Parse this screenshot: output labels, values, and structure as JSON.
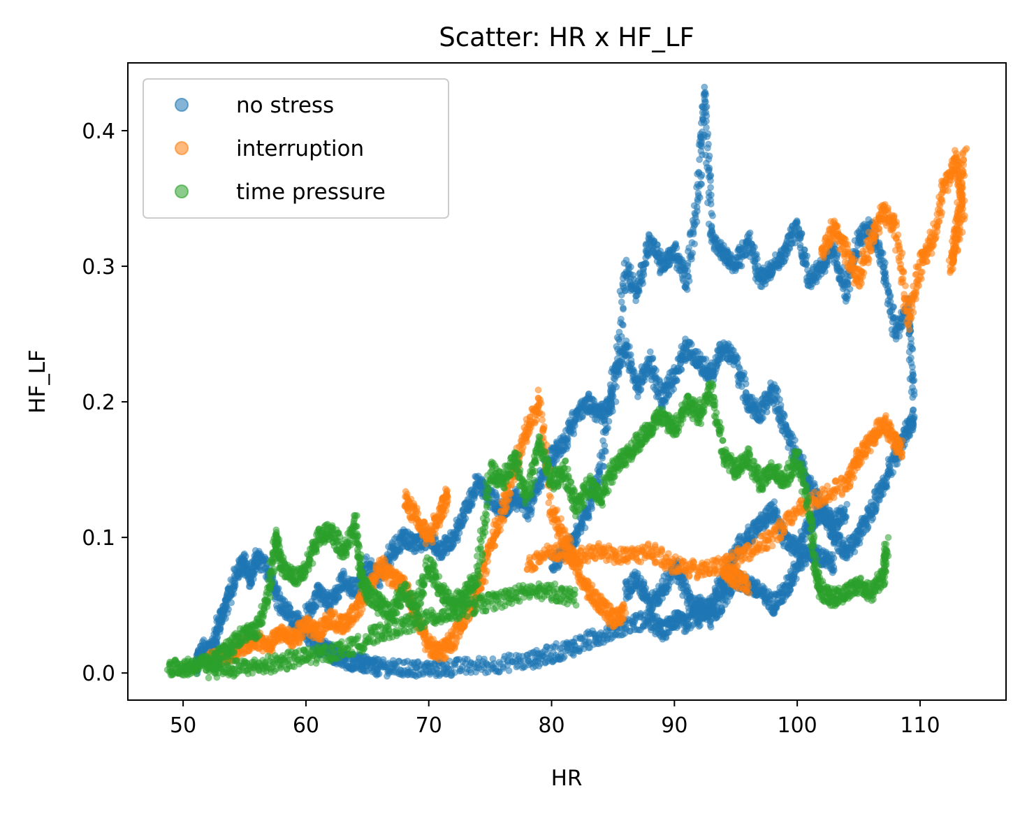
{
  "chart_data": {
    "type": "scatter",
    "title": "Scatter: HR x HF_LF",
    "xlabel": "HR",
    "ylabel": "HF_LF",
    "xlim": [
      45.5,
      117
    ],
    "ylim": [
      -0.02,
      0.45
    ],
    "xticks": [
      50,
      60,
      70,
      80,
      90,
      100,
      110
    ],
    "yticks": [
      0.0,
      0.1,
      0.2,
      0.3,
      0.4
    ],
    "ytick_labels": [
      "0.0",
      "0.1",
      "0.2",
      "0.3",
      "0.4"
    ],
    "grid": false,
    "legend_position": "top-left",
    "series": [
      {
        "name": "no stress",
        "color": "#1f77b4",
        "path": [
          [
            51,
            0.003
          ],
          [
            51.5,
            0.018
          ],
          [
            52.5,
            0.02
          ],
          [
            53,
            0.04
          ],
          [
            53.5,
            0.05
          ],
          [
            54.3,
            0.072
          ],
          [
            55,
            0.082
          ],
          [
            55.5,
            0.068
          ],
          [
            56,
            0.085
          ],
          [
            57,
            0.075
          ],
          [
            58,
            0.05
          ],
          [
            59,
            0.04
          ],
          [
            60,
            0.03
          ],
          [
            61,
            0.02
          ],
          [
            62,
            0.015
          ],
          [
            63,
            0.01
          ],
          [
            64,
            0.008
          ],
          [
            65,
            0.006
          ],
          [
            66,
            0.004
          ],
          [
            68,
            0.003
          ],
          [
            70,
            0.003
          ],
          [
            72,
            0.004
          ],
          [
            75,
            0.006
          ],
          [
            78,
            0.009
          ],
          [
            80,
            0.014
          ],
          [
            82,
            0.02
          ],
          [
            84,
            0.028
          ],
          [
            86,
            0.035
          ],
          [
            88,
            0.04
          ],
          [
            89,
            0.03
          ],
          [
            90,
            0.04
          ],
          [
            91,
            0.035
          ],
          [
            92,
            0.05
          ],
          [
            93,
            0.04
          ],
          [
            94,
            0.055
          ],
          [
            95,
            0.07
          ],
          [
            96,
            0.065
          ],
          [
            97,
            0.06
          ],
          [
            98,
            0.05
          ],
          [
            99,
            0.06
          ],
          [
            100,
            0.08
          ],
          [
            101,
            0.09
          ],
          [
            102,
            0.085
          ],
          [
            103,
            0.08
          ]
        ],
        "path2": [
          [
            60,
            0.04
          ],
          [
            61,
            0.06
          ],
          [
            62,
            0.05
          ],
          [
            63,
            0.07
          ],
          [
            64,
            0.06
          ],
          [
            65,
            0.08
          ],
          [
            66,
            0.07
          ],
          [
            67,
            0.09
          ],
          [
            68,
            0.1
          ],
          [
            69,
            0.095
          ],
          [
            70,
            0.1
          ],
          [
            71,
            0.09
          ],
          [
            72,
            0.1
          ],
          [
            73,
            0.12
          ],
          [
            74,
            0.14
          ],
          [
            75,
            0.13
          ],
          [
            76,
            0.12
          ],
          [
            77,
            0.13
          ],
          [
            78,
            0.12
          ],
          [
            79,
            0.14
          ],
          [
            80,
            0.16
          ],
          [
            81,
            0.17
          ],
          [
            82,
            0.19
          ],
          [
            83,
            0.2
          ],
          [
            84,
            0.19
          ],
          [
            85,
            0.2
          ],
          [
            86,
            0.3
          ],
          [
            87,
            0.28
          ],
          [
            88,
            0.32
          ],
          [
            89,
            0.3
          ],
          [
            90,
            0.31
          ],
          [
            91,
            0.29
          ],
          [
            92,
            0.36
          ],
          [
            92.5,
            0.43
          ],
          [
            93,
            0.32
          ],
          [
            94,
            0.31
          ],
          [
            95,
            0.3
          ],
          [
            96,
            0.32
          ],
          [
            97,
            0.29
          ],
          [
            98,
            0.3
          ],
          [
            99,
            0.31
          ],
          [
            100,
            0.33
          ],
          [
            101,
            0.29
          ],
          [
            102,
            0.3
          ],
          [
            103,
            0.31
          ],
          [
            104,
            0.28
          ],
          [
            105,
            0.32
          ],
          [
            106,
            0.33
          ],
          [
            107,
            0.3
          ],
          [
            108,
            0.25
          ],
          [
            109,
            0.27
          ],
          [
            109.5,
            0.2
          ]
        ],
        "path3": [
          [
            80,
            0.08
          ],
          [
            81,
            0.09
          ],
          [
            82,
            0.1
          ],
          [
            83,
            0.12
          ],
          [
            84,
            0.15
          ],
          [
            85,
            0.22
          ],
          [
            86,
            0.24
          ],
          [
            87,
            0.21
          ],
          [
            88,
            0.23
          ],
          [
            89,
            0.2
          ],
          [
            90,
            0.22
          ],
          [
            91,
            0.24
          ],
          [
            92,
            0.23
          ],
          [
            93,
            0.22
          ],
          [
            94,
            0.24
          ],
          [
            95,
            0.23
          ],
          [
            96,
            0.2
          ],
          [
            97,
            0.19
          ],
          [
            98,
            0.21
          ],
          [
            99,
            0.18
          ],
          [
            100,
            0.16
          ],
          [
            101,
            0.14
          ],
          [
            102,
            0.12
          ],
          [
            103,
            0.1
          ],
          [
            104,
            0.09
          ],
          [
            105,
            0.1
          ],
          [
            106,
            0.12
          ],
          [
            107,
            0.14
          ],
          [
            108,
            0.16
          ],
          [
            109,
            0.18
          ],
          [
            109.5,
            0.19
          ]
        ],
        "path4": [
          [
            86,
            0.06
          ],
          [
            87,
            0.07
          ],
          [
            88,
            0.05
          ],
          [
            89,
            0.06
          ],
          [
            90,
            0.08
          ],
          [
            91,
            0.06
          ],
          [
            92,
            0.04
          ],
          [
            93,
            0.05
          ],
          [
            94,
            0.07
          ],
          [
            95,
            0.09
          ],
          [
            96,
            0.1
          ],
          [
            97,
            0.11
          ],
          [
            98,
            0.12
          ],
          [
            99,
            0.1
          ],
          [
            100,
            0.09
          ],
          [
            101,
            0.11
          ],
          [
            102,
            0.12
          ],
          [
            103,
            0.11
          ],
          [
            104,
            0.12
          ]
        ]
      },
      {
        "name": "interruption",
        "color": "#ff7f0e",
        "path": [
          [
            52,
            0.01
          ],
          [
            53,
            0.012
          ],
          [
            54,
            0.015
          ],
          [
            55,
            0.02
          ],
          [
            56,
            0.025
          ],
          [
            57,
            0.02
          ],
          [
            58,
            0.03
          ],
          [
            59,
            0.025
          ],
          [
            60,
            0.035
          ],
          [
            61,
            0.03
          ],
          [
            62,
            0.04
          ],
          [
            63,
            0.035
          ],
          [
            64,
            0.045
          ],
          [
            65,
            0.06
          ],
          [
            66,
            0.08
          ],
          [
            67,
            0.07
          ],
          [
            68,
            0.065
          ],
          [
            69,
            0.04
          ],
          [
            70,
            0.02
          ],
          [
            71,
            0.015
          ],
          [
            72,
            0.025
          ],
          [
            73,
            0.04
          ],
          [
            74,
            0.06
          ],
          [
            75,
            0.09
          ],
          [
            76,
            0.12
          ],
          [
            77,
            0.15
          ],
          [
            78,
            0.18
          ],
          [
            79,
            0.2
          ],
          [
            80,
            0.12
          ],
          [
            81,
            0.1
          ],
          [
            82,
            0.08
          ],
          [
            83,
            0.06
          ],
          [
            84,
            0.05
          ],
          [
            85,
            0.04
          ],
          [
            86,
            0.045
          ]
        ],
        "path2": [
          [
            68,
            0.13
          ],
          [
            69,
            0.115
          ],
          [
            70,
            0.1
          ],
          [
            71,
            0.12
          ],
          [
            71.5,
            0.13
          ]
        ],
        "path3": [
          [
            78,
            0.08
          ],
          [
            80,
            0.09
          ],
          [
            82,
            0.085
          ],
          [
            84,
            0.09
          ],
          [
            86,
            0.085
          ],
          [
            88,
            0.09
          ],
          [
            90,
            0.08
          ],
          [
            92,
            0.075
          ],
          [
            94,
            0.08
          ],
          [
            96,
            0.09
          ],
          [
            98,
            0.1
          ],
          [
            100,
            0.12
          ],
          [
            102,
            0.13
          ],
          [
            104,
            0.14
          ],
          [
            105,
            0.16
          ],
          [
            106,
            0.17
          ],
          [
            107,
            0.185
          ],
          [
            108,
            0.17
          ],
          [
            108.5,
            0.165
          ]
        ],
        "path4": [
          [
            102,
            0.31
          ],
          [
            103,
            0.33
          ],
          [
            104,
            0.31
          ],
          [
            105,
            0.29
          ],
          [
            106,
            0.32
          ],
          [
            107,
            0.34
          ],
          [
            108,
            0.33
          ],
          [
            109,
            0.26
          ],
          [
            110,
            0.3
          ],
          [
            111,
            0.32
          ],
          [
            112,
            0.36
          ],
          [
            113,
            0.38
          ],
          [
            113.5,
            0.34
          ],
          [
            112.5,
            0.3
          ],
          [
            113,
            0.33
          ],
          [
            113.7,
            0.39
          ]
        ],
        "path5": [
          [
            94,
            0.075
          ],
          [
            95,
            0.07
          ],
          [
            96,
            0.065
          ]
        ]
      },
      {
        "name": "time pressure",
        "color": "#2ca02c",
        "path": [
          [
            48.8,
            0.004
          ],
          [
            50,
            0.004
          ],
          [
            51,
            0.005
          ],
          [
            52,
            0.007
          ],
          [
            53,
            0.012
          ],
          [
            54,
            0.02
          ],
          [
            55,
            0.03
          ],
          [
            56,
            0.03
          ],
          [
            57,
            0.06
          ],
          [
            57.5,
            0.1
          ],
          [
            58,
            0.08
          ],
          [
            59,
            0.07
          ],
          [
            60,
            0.075
          ],
          [
            61,
            0.1
          ],
          [
            62,
            0.105
          ],
          [
            63,
            0.09
          ],
          [
            64,
            0.11
          ],
          [
            64.5,
            0.07
          ],
          [
            65,
            0.06
          ],
          [
            66,
            0.05
          ],
          [
            67,
            0.045
          ],
          [
            68,
            0.06
          ],
          [
            69,
            0.05
          ],
          [
            70,
            0.08
          ],
          [
            71,
            0.06
          ],
          [
            72,
            0.05
          ],
          [
            73,
            0.06
          ],
          [
            74,
            0.07
          ],
          [
            75,
            0.15
          ],
          [
            76,
            0.14
          ],
          [
            77,
            0.16
          ],
          [
            78,
            0.13
          ],
          [
            79,
            0.17
          ],
          [
            80,
            0.14
          ],
          [
            81,
            0.15
          ],
          [
            82,
            0.12
          ],
          [
            83,
            0.14
          ],
          [
            84,
            0.13
          ],
          [
            85,
            0.15
          ],
          [
            86,
            0.16
          ],
          [
            87,
            0.17
          ],
          [
            88,
            0.18
          ],
          [
            89,
            0.19
          ],
          [
            90,
            0.18
          ],
          [
            91,
            0.2
          ],
          [
            92,
            0.19
          ],
          [
            93,
            0.21
          ],
          [
            94,
            0.16
          ],
          [
            95,
            0.15
          ],
          [
            96,
            0.16
          ],
          [
            97,
            0.14
          ],
          [
            98,
            0.15
          ],
          [
            99,
            0.14
          ],
          [
            100,
            0.16
          ],
          [
            101,
            0.12
          ],
          [
            101.5,
            0.075
          ],
          [
            102,
            0.06
          ],
          [
            103,
            0.055
          ],
          [
            104,
            0.06
          ],
          [
            105,
            0.065
          ],
          [
            106,
            0.06
          ],
          [
            107,
            0.07
          ],
          [
            107.3,
            0.095
          ]
        ],
        "path2": [
          [
            52,
            0.002
          ],
          [
            54,
            0.003
          ],
          [
            56,
            0.005
          ],
          [
            58,
            0.008
          ],
          [
            60,
            0.012
          ],
          [
            62,
            0.015
          ],
          [
            64,
            0.02
          ],
          [
            66,
            0.03
          ],
          [
            68,
            0.035
          ],
          [
            70,
            0.04
          ],
          [
            72,
            0.045
          ],
          [
            74,
            0.05
          ],
          [
            76,
            0.055
          ],
          [
            78,
            0.06
          ],
          [
            80,
            0.06
          ],
          [
            82,
            0.055
          ]
        ]
      }
    ]
  }
}
